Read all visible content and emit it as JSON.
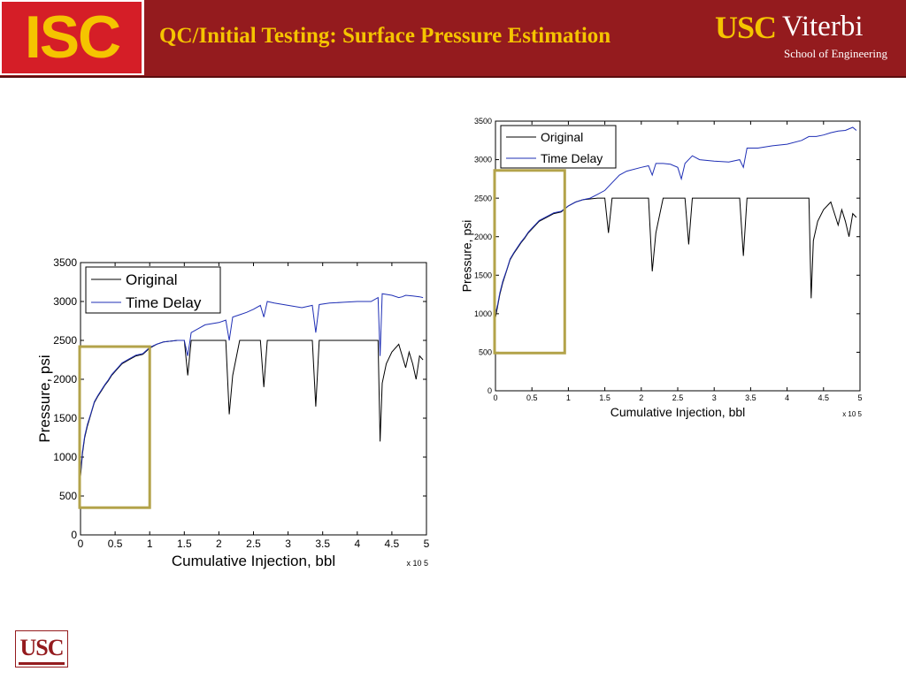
{
  "header": {
    "logo_text": "ISC",
    "title": "QC/Initial Testing: Surface Pressure Estimation",
    "brand_usc": "USC",
    "brand_viterbi": "Viterbi",
    "brand_school": "School of Engineering",
    "footer_logo": "USC"
  },
  "colors": {
    "header_bg": "#941b1e",
    "title_color": "#f5c400",
    "original_series": "#000000",
    "delay_series": "#1f2fb5",
    "highlight_box": "#b3a34a"
  },
  "chart_data": [
    {
      "type": "line",
      "xlabel": "Cumulative Injection, bbl",
      "ylabel": "Pressure, psi",
      "x_multiplier": "x 10^5",
      "xlim": [
        0,
        5
      ],
      "ylim": [
        0,
        3500
      ],
      "xticks": [
        "0",
        "0.5",
        "1",
        "1.5",
        "2",
        "2.5",
        "3",
        "3.5",
        "4",
        "4.5",
        "5"
      ],
      "yticks": [
        "0",
        "500",
        "1000",
        "1500",
        "2000",
        "2500",
        "3000",
        "3500"
      ],
      "legend": "top-left",
      "highlight_box": {
        "x": [
          0,
          1
        ],
        "y": [
          350,
          2420
        ]
      },
      "series": [
        {
          "name": "Original",
          "x": [
            0.0,
            0.03,
            0.06,
            0.1,
            0.15,
            0.2,
            0.25,
            0.3,
            0.35,
            0.4,
            0.45,
            0.5,
            0.55,
            0.6,
            0.7,
            0.8,
            0.9,
            1.0,
            1.1,
            1.2,
            1.3,
            1.4,
            1.5,
            1.55,
            1.6,
            1.8,
            2.0,
            2.1,
            2.15,
            2.2,
            2.3,
            2.5,
            2.6,
            2.65,
            2.7,
            2.8,
            3.0,
            3.2,
            3.35,
            3.4,
            3.45,
            3.6,
            3.8,
            4.0,
            4.2,
            4.3,
            4.33,
            4.36,
            4.42,
            4.5,
            4.6,
            4.65,
            4.7,
            4.75,
            4.8,
            4.85,
            4.9,
            4.95
          ],
          "y": [
            750,
            1050,
            1250,
            1400,
            1550,
            1700,
            1780,
            1850,
            1920,
            1980,
            2050,
            2100,
            2150,
            2200,
            2250,
            2300,
            2320,
            2400,
            2450,
            2480,
            2490,
            2500,
            2500,
            2050,
            2500,
            2500,
            2500,
            2500,
            1550,
            2050,
            2500,
            2500,
            2500,
            1900,
            2500,
            2500,
            2500,
            2500,
            2500,
            1650,
            2500,
            2500,
            2500,
            2500,
            2500,
            2500,
            1200,
            1950,
            2200,
            2350,
            2450,
            2300,
            2150,
            2350,
            2200,
            2000,
            2300,
            2250
          ]
        },
        {
          "name": "Time Delay",
          "x": [
            0.0,
            0.03,
            0.06,
            0.1,
            0.15,
            0.2,
            0.25,
            0.3,
            0.35,
            0.4,
            0.45,
            0.5,
            0.55,
            0.6,
            0.7,
            0.8,
            0.9,
            1.0,
            1.1,
            1.2,
            1.3,
            1.4,
            1.5,
            1.55,
            1.6,
            1.7,
            1.8,
            2.0,
            2.1,
            2.15,
            2.2,
            2.3,
            2.4,
            2.5,
            2.6,
            2.65,
            2.7,
            2.8,
            3.0,
            3.2,
            3.35,
            3.4,
            3.45,
            3.6,
            3.8,
            4.0,
            4.2,
            4.3,
            4.33,
            4.36,
            4.5,
            4.6,
            4.65,
            4.7,
            4.8,
            4.9,
            4.95
          ],
          "y": [
            800,
            1080,
            1270,
            1420,
            1560,
            1710,
            1790,
            1860,
            1930,
            1990,
            2060,
            2110,
            2160,
            2210,
            2260,
            2310,
            2330,
            2410,
            2450,
            2480,
            2490,
            2500,
            2500,
            2300,
            2600,
            2650,
            2700,
            2730,
            2760,
            2500,
            2800,
            2830,
            2860,
            2900,
            2950,
            2800,
            3000,
            2980,
            2950,
            2920,
            2950,
            2600,
            2960,
            2980,
            2990,
            3000,
            3000,
            3050,
            2300,
            3100,
            3080,
            3050,
            3060,
            3080,
            3070,
            3060,
            3050
          ]
        }
      ]
    },
    {
      "type": "line",
      "xlabel": "Cumulative Injection, bbl",
      "ylabel": "Pressure, psi",
      "x_multiplier": "x 10^5",
      "xlim": [
        0,
        5
      ],
      "ylim": [
        0,
        3500
      ],
      "xticks": [
        "0",
        "0.5",
        "1",
        "1.5",
        "2",
        "2.5",
        "3",
        "3.5",
        "4",
        "4.5",
        "5"
      ],
      "yticks": [
        "0",
        "500",
        "1000",
        "1500",
        "2000",
        "2500",
        "3000",
        "3500"
      ],
      "legend": "top-left",
      "highlight_box": {
        "x": [
          0,
          0.95
        ],
        "y": [
          490,
          2860
        ]
      },
      "series": [
        {
          "name": "Original",
          "x": [
            0.0,
            0.03,
            0.06,
            0.1,
            0.15,
            0.2,
            0.25,
            0.3,
            0.35,
            0.4,
            0.45,
            0.5,
            0.55,
            0.6,
            0.7,
            0.8,
            0.9,
            1.0,
            1.1,
            1.2,
            1.3,
            1.4,
            1.5,
            1.55,
            1.6,
            1.8,
            2.0,
            2.1,
            2.15,
            2.2,
            2.3,
            2.5,
            2.6,
            2.65,
            2.7,
            2.8,
            3.0,
            3.2,
            3.35,
            3.4,
            3.45,
            3.6,
            3.8,
            4.0,
            4.2,
            4.3,
            4.33,
            4.36,
            4.42,
            4.5,
            4.6,
            4.65,
            4.7,
            4.75,
            4.8,
            4.85,
            4.9,
            4.95
          ],
          "y": [
            950,
            1100,
            1250,
            1400,
            1550,
            1700,
            1780,
            1850,
            1920,
            1980,
            2050,
            2100,
            2150,
            2200,
            2250,
            2300,
            2320,
            2400,
            2450,
            2480,
            2490,
            2500,
            2500,
            2050,
            2500,
            2500,
            2500,
            2500,
            1550,
            2050,
            2500,
            2500,
            2500,
            1900,
            2500,
            2500,
            2500,
            2500,
            2500,
            1750,
            2500,
            2500,
            2500,
            2500,
            2500,
            2500,
            1200,
            1950,
            2200,
            2350,
            2450,
            2300,
            2150,
            2350,
            2200,
            2000,
            2300,
            2250
          ]
        },
        {
          "name": "Time Delay",
          "x": [
            0.0,
            0.03,
            0.06,
            0.1,
            0.15,
            0.2,
            0.25,
            0.3,
            0.35,
            0.4,
            0.45,
            0.5,
            0.55,
            0.6,
            0.7,
            0.8,
            0.9,
            1.0,
            1.1,
            1.2,
            1.3,
            1.4,
            1.5,
            1.6,
            1.7,
            1.8,
            2.0,
            2.1,
            2.15,
            2.2,
            2.3,
            2.4,
            2.5,
            2.55,
            2.6,
            2.7,
            2.8,
            3.0,
            3.2,
            3.35,
            3.4,
            3.45,
            3.6,
            3.8,
            4.0,
            4.2,
            4.3,
            4.4,
            4.5,
            4.6,
            4.7,
            4.8,
            4.9,
            4.95
          ],
          "y": [
            1000,
            1120,
            1270,
            1420,
            1560,
            1710,
            1790,
            1860,
            1930,
            1990,
            2060,
            2110,
            2160,
            2210,
            2260,
            2310,
            2330,
            2400,
            2450,
            2480,
            2500,
            2550,
            2600,
            2700,
            2800,
            2850,
            2900,
            2920,
            2800,
            2950,
            2950,
            2940,
            2900,
            2750,
            2950,
            3050,
            3000,
            2980,
            2970,
            3000,
            2900,
            3150,
            3150,
            3180,
            3200,
            3250,
            3300,
            3300,
            3320,
            3350,
            3370,
            3380,
            3420,
            3380
          ]
        }
      ]
    }
  ]
}
